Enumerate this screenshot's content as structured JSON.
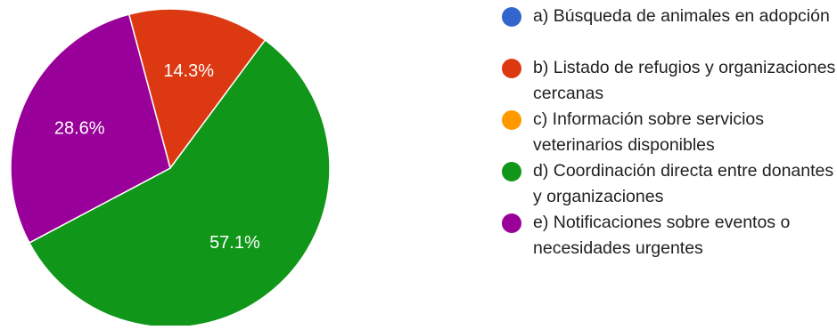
{
  "chart_data": {
    "type": "pie",
    "title": "",
    "start_angle_deg": -15,
    "direction": "clockwise",
    "slices": [
      {
        "label": "a) Búsqueda de animales en adopción",
        "value": 0,
        "display": "",
        "color": "#3366cc"
      },
      {
        "label": "b) Listado de refugios y organizaciones cercanas",
        "value": 14.3,
        "display": "14.3%",
        "color": "#dc3912"
      },
      {
        "label": "c) Información sobre servicios veterinarios disponibles",
        "value": 0,
        "display": "",
        "color": "#ff9900"
      },
      {
        "label": "d) Coordinación directa entre donantes y organizaciones",
        "value": 57.1,
        "display": "57.1%",
        "color": "#109618"
      },
      {
        "label": "e) Notificaciones sobre eventos o necesidades urgentes",
        "value": 28.6,
        "display": "28.6%",
        "color": "#990099"
      }
    ],
    "legend_position": "right"
  },
  "legend": {
    "items": [
      {
        "label": "a) Búsqueda de animales en adopción",
        "color": "#3366cc"
      },
      {
        "label": "b) Listado de refugios y organizaciones cercanas",
        "color": "#dc3912"
      },
      {
        "label": "c) Información sobre servicios veterinarios disponibles",
        "color": "#ff9900"
      },
      {
        "label": "d) Coordinación directa entre donantes y organizaciones",
        "color": "#109618"
      },
      {
        "label": "e) Notificaciones sobre eventos o necesidades urgentes",
        "color": "#990099"
      }
    ]
  }
}
